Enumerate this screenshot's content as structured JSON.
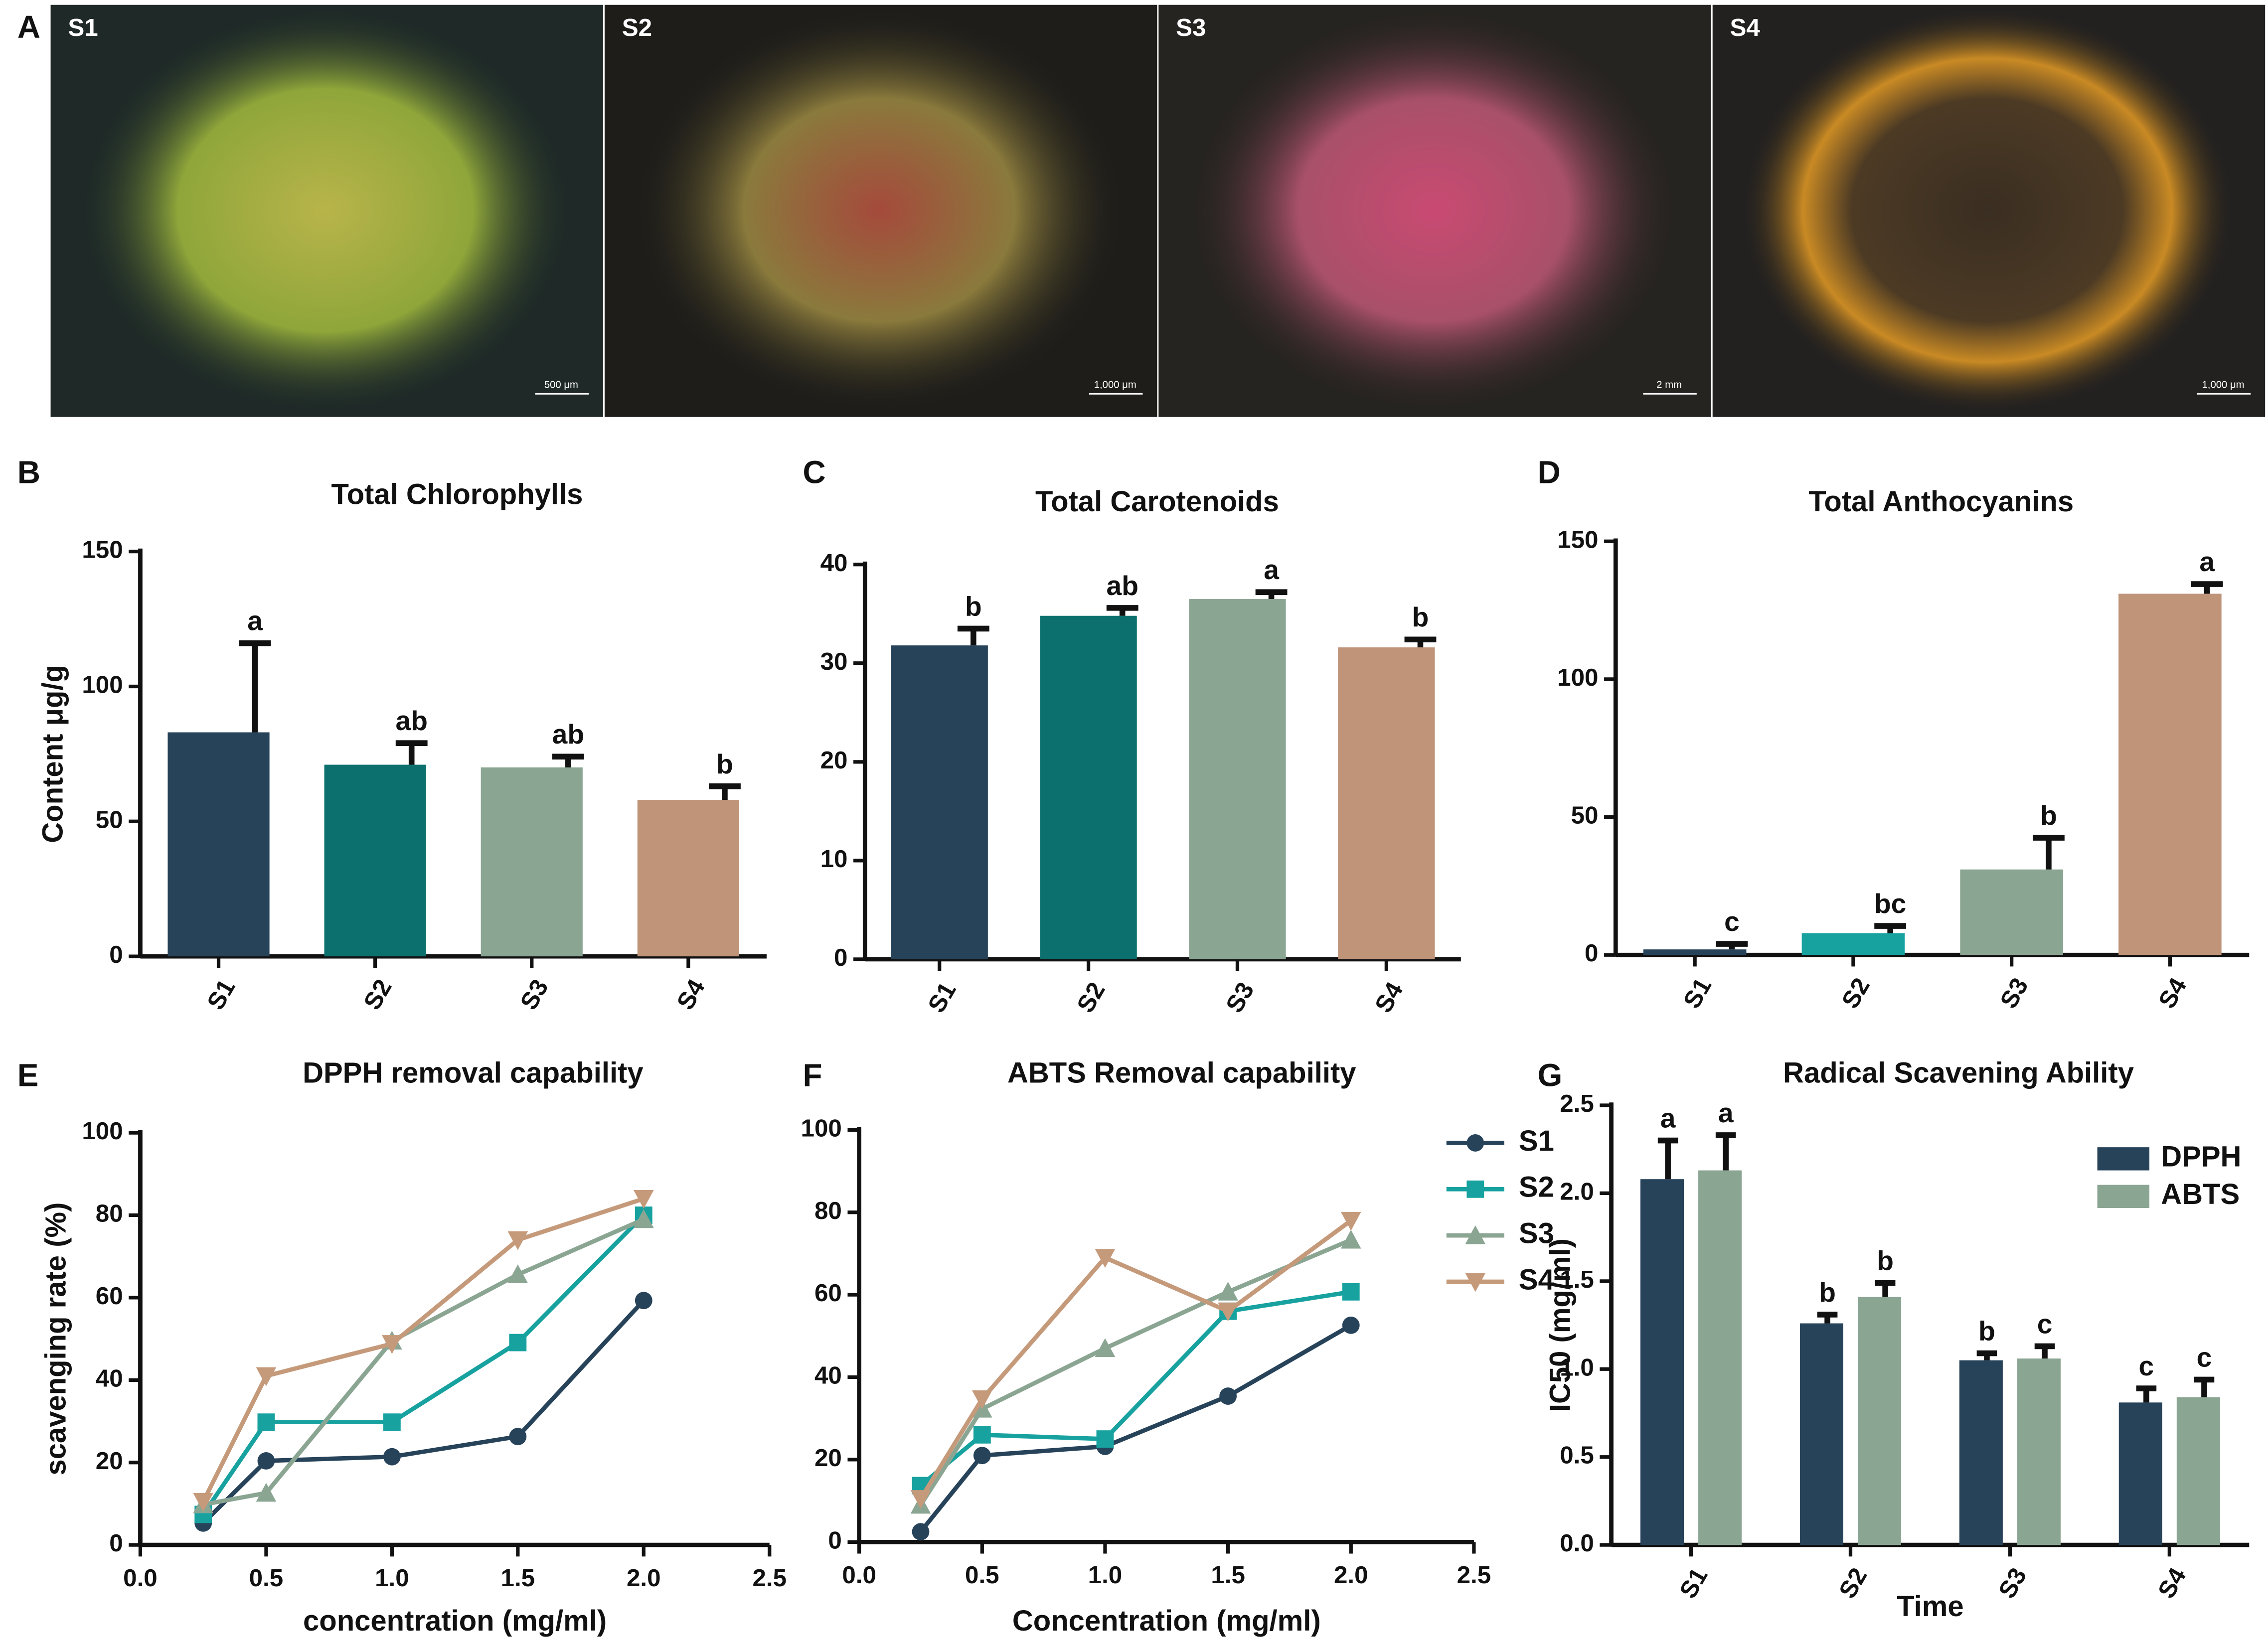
{
  "figure_a": {
    "panel": "A",
    "photos": [
      {
        "label": "S1",
        "scale_bar": "500 μm"
      },
      {
        "label": "S2",
        "scale_bar": "1,000 μm"
      },
      {
        "label": "S3",
        "scale_bar": "2 mm"
      },
      {
        "label": "S4",
        "scale_bar": "1,000 μm"
      }
    ]
  },
  "chart_data": [
    {
      "type": "bar",
      "panel": "B",
      "title": "Total Chlorophylls",
      "y_label": "Content μg/g",
      "categories": [
        "S1",
        "S2",
        "S3",
        "S4"
      ],
      "values": [
        83,
        71,
        70,
        58
      ],
      "errors": [
        33,
        8,
        4,
        5
      ],
      "annotations": [
        "a",
        "ab",
        "ab",
        "b"
      ],
      "colors": [
        "#27435a",
        "#0c716e",
        "#8ba593",
        "#bf9479"
      ],
      "ylim": [
        0,
        150
      ],
      "yticks": [
        0,
        50,
        100,
        150
      ]
    },
    {
      "type": "bar",
      "panel": "C",
      "title": "Total Carotenoids",
      "categories": [
        "S1",
        "S2",
        "S3",
        "S4"
      ],
      "values": [
        31.8,
        34.8,
        36.5,
        31.6
      ],
      "errors": [
        1.7,
        0.8,
        0.7,
        0.8
      ],
      "annotations": [
        "b",
        "ab",
        "a",
        "b"
      ],
      "colors": [
        "#27435a",
        "#0c716e",
        "#8ba593",
        "#bf9479"
      ],
      "ylim": [
        0,
        40
      ],
      "yticks": [
        0,
        10,
        20,
        30,
        40
      ]
    },
    {
      "type": "bar",
      "panel": "D",
      "title": "Total Anthocyanins",
      "categories": [
        "S1",
        "S2",
        "S3",
        "S4"
      ],
      "values": [
        2,
        7.9,
        31,
        131
      ],
      "errors": [
        2,
        2.6,
        11.5,
        3.5
      ],
      "annotations": [
        "c",
        "bc",
        "b",
        "a"
      ],
      "colors": [
        "#27435a",
        "#17a2a0",
        "#8ba593",
        "#bf9479"
      ],
      "ylim": [
        0,
        150
      ],
      "yticks": [
        0,
        50,
        100,
        150
      ]
    },
    {
      "type": "line",
      "panel": "E",
      "title": "DPPH removal capability",
      "x_label": "concentration (mg/ml)",
      "y_label": "scavenging rate (%)",
      "x": [
        0.25,
        0.5,
        1,
        1.5,
        2
      ],
      "series": [
        {
          "color": "#27435a",
          "marker": "circle",
          "values": [
            5.3,
            20.4,
            21.4,
            26.3,
            59.3
          ]
        },
        {
          "color": "#17a2a0",
          "marker": "square",
          "values": [
            7.4,
            29.8,
            29.8,
            49.1,
            80
          ]
        },
        {
          "color": "#8ba593",
          "marker": "triangle-up",
          "values": [
            9.8,
            12.6,
            49.5,
            65.6,
            79
          ]
        },
        {
          "color": "#c59a7b",
          "marker": "triangle-down",
          "values": [
            10.5,
            41,
            48.8,
            74,
            84
          ]
        }
      ],
      "xlim": [
        0,
        2.5
      ],
      "xticks": [
        {
          "value": 0,
          "label": "0.0"
        },
        0.5,
        {
          "value": 1,
          "label": "1.0"
        },
        1.5,
        {
          "value": 2,
          "label": "2.0"
        },
        2.5
      ],
      "ylim": [
        0,
        100
      ],
      "yticks": [
        0,
        20,
        40,
        60,
        80,
        100
      ]
    },
    {
      "type": "line",
      "panel": "F",
      "title": "ABTS Removal capability",
      "x_label": "Concentration (mg/ml)",
      "x": [
        0.25,
        0.5,
        1,
        1.5,
        2
      ],
      "series": [
        {
          "name": "S1",
          "color": "#27435a",
          "marker": "circle",
          "values": [
            2.5,
            21,
            23.2,
            35.4,
            52.6
          ]
        },
        {
          "name": "S2",
          "color": "#17a2a0",
          "marker": "square",
          "values": [
            13.7,
            26,
            25,
            56,
            60.7
          ]
        },
        {
          "name": "S3",
          "color": "#8ba593",
          "marker": "triangle-up",
          "values": [
            9,
            32.3,
            47,
            60.7,
            73.3
          ]
        },
        {
          "name": "S4",
          "color": "#c59a7b",
          "marker": "triangle-down",
          "values": [
            10.5,
            34.7,
            69,
            56,
            78
          ]
        }
      ],
      "xlim": [
        0,
        2.5
      ],
      "xticks": [
        {
          "value": 0,
          "label": "0.0"
        },
        0.5,
        {
          "value": 1,
          "label": "1.0"
        },
        1.5,
        {
          "value": 2,
          "label": "2.0"
        },
        2.5
      ],
      "ylim": [
        0,
        100
      ],
      "yticks": [
        0,
        20,
        40,
        60,
        80,
        100
      ],
      "legend": "right"
    },
    {
      "type": "grouped_bar",
      "panel": "G",
      "title": "Radical Scavening Ability",
      "x_label": "Time",
      "y_label": "IC50 (mg/ml)",
      "categories": [
        "S1",
        "S2",
        "S3",
        "S4"
      ],
      "series": [
        {
          "name": "DPPH",
          "color": "#27435a",
          "values": [
            2.08,
            1.26,
            1.05,
            0.81
          ],
          "errors": [
            0.22,
            0.05,
            0.04,
            0.08
          ],
          "annotations": [
            "a",
            "b",
            "b",
            "c"
          ]
        },
        {
          "name": "ABTS",
          "color": "#8ba593",
          "values": [
            2.13,
            1.41,
            1.06,
            0.84
          ],
          "errors": [
            0.2,
            0.08,
            0.07,
            0.1
          ],
          "annotations": [
            "a",
            "b",
            "c",
            "c"
          ]
        }
      ],
      "ylim": [
        0,
        2.5
      ],
      "yticks": [
        {
          "value": 0,
          "label": "0.0"
        },
        0.5,
        {
          "value": 1,
          "label": "1.0"
        },
        1.5,
        {
          "value": 2,
          "label": "2.0"
        },
        2.5
      ],
      "legend": "upper right"
    }
  ]
}
